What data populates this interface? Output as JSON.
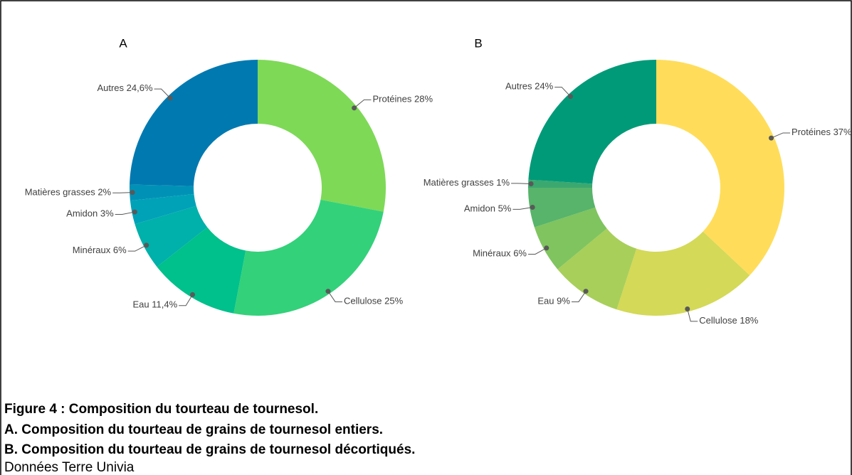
{
  "chart_data": [
    {
      "type": "donut",
      "title": "A",
      "categories": [
        "Protéines",
        "Cellulose",
        "Eau",
        "Minéraux",
        "Amidon",
        "Matières grasses",
        "Autres"
      ],
      "values": [
        28,
        25,
        11.4,
        6,
        3,
        2,
        24.6
      ],
      "value_labels": [
        "28%",
        "25%",
        "11,4%",
        "6%",
        "3%",
        "2%",
        "24,6%"
      ],
      "colors": [
        "#7ed957",
        "#33d17a",
        "#00c08b",
        "#00b0aa",
        "#00a2b8",
        "#0092b6",
        "#0079b0"
      ]
    },
    {
      "type": "donut",
      "title": "B",
      "categories": [
        "Protéines",
        "Cellulose",
        "Eau",
        "Minéraux",
        "Amidon",
        "Matières grasses",
        "Autres"
      ],
      "values": [
        37,
        18,
        9,
        6,
        5,
        1,
        24
      ],
      "value_labels": [
        "37%",
        "18%",
        "9%",
        "6%",
        "5%",
        "1%",
        "24%"
      ],
      "colors": [
        "#ffdd5a",
        "#d4d957",
        "#a8cf5a",
        "#80c45f",
        "#57b46a",
        "#3ba86f",
        "#009a78"
      ]
    }
  ],
  "caption": {
    "title": "Figure 4 : Composition du tourteau de tournesol.",
    "lines": [
      "A. Composition du tourteau de grains de tournesol entiers.",
      "B. Composition du tourteau de grains de tournesol décortiqués."
    ],
    "source": "Données Terre Univia"
  }
}
